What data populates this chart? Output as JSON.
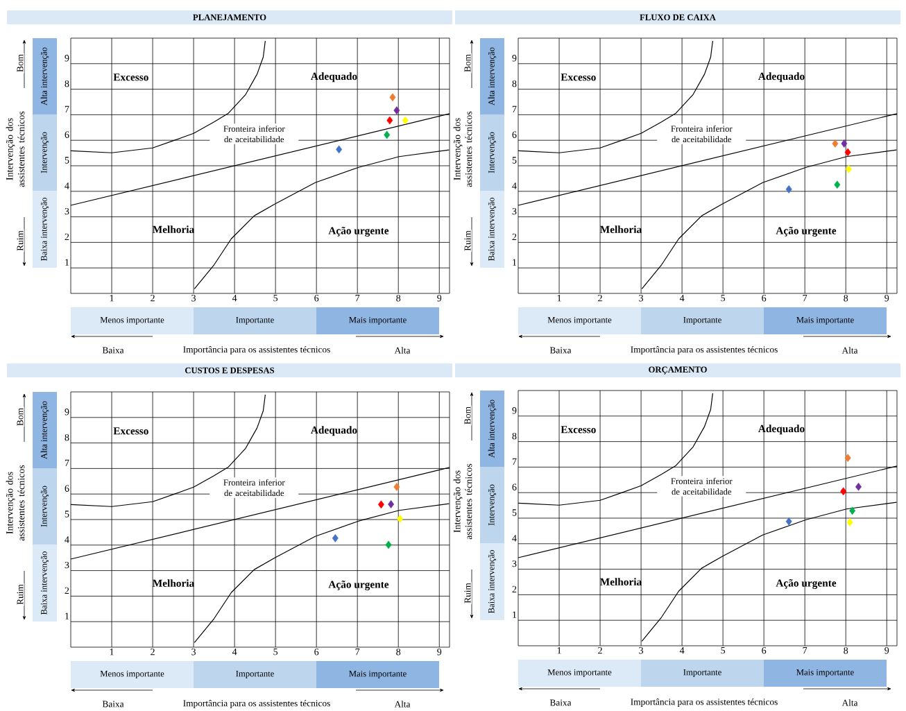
{
  "chart_data": [
    {
      "type": "scatter",
      "title": "PLANEJAMENTO",
      "xlabel": "Importância para os assistentes técnicos",
      "ylabel": "Intervenção dos assistentes técnicos",
      "xlim": [
        0,
        9.25
      ],
      "ylim": [
        0,
        10
      ],
      "xticks": [
        1,
        2,
        3,
        4,
        5,
        6,
        7,
        8,
        9
      ],
      "yticks": [
        1,
        2,
        3,
        4,
        5,
        6,
        7,
        8,
        9
      ],
      "grid": true,
      "marker": "diamond",
      "annotations": [
        "Bom",
        "Ruim",
        "Baixa",
        "Alta",
        "Menos importante",
        "Importante",
        "Mais importante",
        "Baixa intervenção",
        "Intervenção",
        "Alta intervenção",
        "Excesso",
        "Adequado",
        "Melhoria",
        "Ação urgente",
        "Fronteira inferior de aceitabilidade"
      ],
      "series": [
        {
          "type": "line",
          "marker": "none",
          "color": "#000000",
          "x": [
            0,
            1,
            2,
            2.5,
            3,
            3.5,
            3.85,
            4.27,
            4.55,
            4.7,
            4.75
          ],
          "values": [
            5.59,
            5.51,
            5.7,
            5.98,
            6.27,
            6.72,
            7.06,
            7.79,
            8.59,
            9.26,
            9.89
          ]
        },
        {
          "type": "line",
          "marker": "none",
          "color": "#000000",
          "x": [
            0,
            9.25
          ],
          "values": [
            3.45,
            7.04
          ]
        },
        {
          "type": "line",
          "marker": "none",
          "color": "#000000",
          "x": [
            3.02,
            3.5,
            3.92,
            4.48,
            4.98,
            5.97,
            7.03,
            8.02,
            9.24
          ],
          "values": [
            0.18,
            1.12,
            2.14,
            3.04,
            3.5,
            4.34,
            4.94,
            5.36,
            5.62
          ]
        },
        {
          "color": "#4472c4",
          "x": [
            6.55
          ],
          "values": [
            5.64
          ]
        },
        {
          "color": "#ed7d31",
          "x": [
            7.86
          ],
          "values": [
            7.68
          ]
        },
        {
          "color": "#7030a0",
          "x": [
            7.96
          ],
          "values": [
            7.17
          ]
        },
        {
          "color": "#ff0000",
          "x": [
            7.79
          ],
          "values": [
            6.78
          ]
        },
        {
          "color": "#ffff00",
          "x": [
            8.17
          ],
          "values": [
            6.78
          ]
        },
        {
          "color": "#00b050",
          "x": [
            7.72
          ],
          "values": [
            6.21
          ]
        }
      ]
    },
    {
      "type": "scatter",
      "title": "FLUXO DE CAIXA",
      "xlabel": "Importância para os assistentes técnicos",
      "ylabel": "Intervenção dos assistentes técnicos",
      "xlim": [
        0,
        9.25
      ],
      "ylim": [
        0,
        10
      ],
      "xticks": [
        1,
        2,
        3,
        4,
        5,
        6,
        7,
        8,
        9
      ],
      "yticks": [
        1,
        2,
        3,
        4,
        5,
        6,
        7,
        8,
        9
      ],
      "grid": true,
      "marker": "diamond",
      "annotations": [
        "Bom",
        "Ruim",
        "Baixa",
        "Alta",
        "Menos importante",
        "Importante",
        "Mais importante",
        "Baixa intervenção",
        "Intervenção",
        "Alta intervenção",
        "Excesso",
        "Adequado",
        "Melhoria",
        "Ação urgente",
        "Fronteira inferior de aceitabilidade"
      ],
      "series": [
        {
          "type": "line",
          "marker": "none",
          "color": "#000000",
          "x": [
            0,
            1,
            2,
            2.5,
            3,
            3.5,
            3.85,
            4.27,
            4.55,
            4.7,
            4.75
          ],
          "values": [
            5.59,
            5.51,
            5.7,
            5.98,
            6.27,
            6.72,
            7.06,
            7.79,
            8.59,
            9.26,
            9.89
          ]
        },
        {
          "type": "line",
          "marker": "none",
          "color": "#000000",
          "x": [
            0,
            9.25
          ],
          "values": [
            3.45,
            7.04
          ]
        },
        {
          "type": "line",
          "marker": "none",
          "color": "#000000",
          "x": [
            3.02,
            3.5,
            3.92,
            4.48,
            4.98,
            5.97,
            7.03,
            8.02,
            9.24
          ],
          "values": [
            0.18,
            1.12,
            2.14,
            3.04,
            3.5,
            4.34,
            4.94,
            5.36,
            5.62
          ]
        },
        {
          "color": "#4472c4",
          "x": [
            6.61
          ],
          "values": [
            4.08
          ]
        },
        {
          "color": "#ed7d31",
          "x": [
            7.74
          ],
          "values": [
            5.87
          ]
        },
        {
          "color": "#7030a0",
          "x": [
            7.96
          ],
          "values": [
            5.87
          ]
        },
        {
          "color": "#ff0000",
          "x": [
            8.05
          ],
          "values": [
            5.53
          ]
        },
        {
          "color": "#ffff00",
          "x": [
            8.07
          ],
          "values": [
            4.87
          ]
        },
        {
          "color": "#00b050",
          "x": [
            7.79
          ],
          "values": [
            4.26
          ]
        }
      ]
    },
    {
      "type": "scatter",
      "title": "CUSTOS E DESPESAS",
      "xlabel": "Importância para os assistentes técnicos",
      "ylabel": "Intervenção dos assistentes técnicos",
      "xlim": [
        0,
        9.25
      ],
      "ylim": [
        0,
        10
      ],
      "xticks": [
        1,
        2,
        3,
        4,
        5,
        6,
        7,
        8,
        9
      ],
      "yticks": [
        1,
        2,
        3,
        4,
        5,
        6,
        7,
        8,
        9
      ],
      "grid": true,
      "marker": "diamond",
      "annotations": [
        "Bom",
        "Ruim",
        "Baixa",
        "Alta",
        "Menos importante",
        "Importante",
        "Mais importante",
        "Baixa intervenção",
        "Intervenção",
        "Alta intervenção",
        "Excesso",
        "Adequado",
        "Melhoria",
        "Ação urgente",
        "Fronteira inferior de aceitabilidade"
      ],
      "series": [
        {
          "type": "line",
          "marker": "none",
          "color": "#000000",
          "x": [
            0,
            1,
            2,
            2.5,
            3,
            3.5,
            3.85,
            4.27,
            4.55,
            4.7,
            4.75
          ],
          "values": [
            5.59,
            5.51,
            5.7,
            5.98,
            6.27,
            6.72,
            7.06,
            7.79,
            8.59,
            9.26,
            9.89
          ]
        },
        {
          "type": "line",
          "marker": "none",
          "color": "#000000",
          "x": [
            0,
            9.25
          ],
          "values": [
            3.45,
            7.04
          ]
        },
        {
          "type": "line",
          "marker": "none",
          "color": "#000000",
          "x": [
            3.02,
            3.5,
            3.92,
            4.48,
            4.98,
            5.97,
            7.03,
            8.02,
            9.24
          ],
          "values": [
            0.18,
            1.12,
            2.14,
            3.04,
            3.5,
            4.34,
            4.94,
            5.36,
            5.62
          ]
        },
        {
          "color": "#4472c4",
          "x": [
            6.46
          ],
          "values": [
            4.27
          ]
        },
        {
          "color": "#ed7d31",
          "x": [
            7.96
          ],
          "values": [
            6.28
          ]
        },
        {
          "color": "#7030a0",
          "x": [
            7.82
          ],
          "values": [
            5.6
          ]
        },
        {
          "color": "#ff0000",
          "x": [
            7.58
          ],
          "values": [
            5.59
          ]
        },
        {
          "color": "#ffff00",
          "x": [
            8.04
          ],
          "values": [
            5.03
          ]
        },
        {
          "color": "#00b050",
          "x": [
            7.76
          ],
          "values": [
            4.01
          ]
        }
      ]
    },
    {
      "type": "scatter",
      "title": "ORÇAMENTO",
      "xlabel": "Importância para os assistentes técnicos",
      "ylabel": "Intervenção dos assistentes técnicos",
      "xlim": [
        0,
        9.25
      ],
      "ylim": [
        0,
        10
      ],
      "xticks": [
        1,
        2,
        3,
        4,
        5,
        6,
        7,
        8,
        9
      ],
      "yticks": [
        1,
        2,
        3,
        4,
        5,
        6,
        7,
        8,
        9
      ],
      "grid": true,
      "marker": "diamond",
      "annotations": [
        "Bom",
        "Ruim",
        "Baixa",
        "Alta",
        "Menos importante",
        "Importante",
        "Mais importante",
        "Baixa intervenção",
        "Intervenção",
        "Alta intervenção",
        "Excesso",
        "Adequado",
        "Melhoria",
        "Ação urgente",
        "Fronteira inferior de aceitabilidade"
      ],
      "series": [
        {
          "type": "line",
          "marker": "none",
          "color": "#000000",
          "x": [
            0,
            1,
            2,
            2.5,
            3,
            3.5,
            3.85,
            4.27,
            4.55,
            4.7,
            4.75
          ],
          "values": [
            5.59,
            5.51,
            5.7,
            5.98,
            6.27,
            6.72,
            7.06,
            7.79,
            8.59,
            9.26,
            9.89
          ]
        },
        {
          "type": "line",
          "marker": "none",
          "color": "#000000",
          "x": [
            0,
            9.25
          ],
          "values": [
            3.45,
            7.04
          ]
        },
        {
          "type": "line",
          "marker": "none",
          "color": "#000000",
          "x": [
            3.02,
            3.5,
            3.92,
            4.48,
            4.98,
            5.97,
            7.03,
            8.02,
            9.24
          ],
          "values": [
            0.18,
            1.12,
            2.14,
            3.04,
            3.5,
            4.34,
            4.94,
            5.36,
            5.62
          ]
        },
        {
          "color": "#4472c4",
          "x": [
            6.61
          ],
          "values": [
            4.87
          ]
        },
        {
          "color": "#ed7d31",
          "x": [
            8.05
          ],
          "values": [
            7.36
          ]
        },
        {
          "color": "#7030a0",
          "x": [
            8.31
          ],
          "values": [
            6.23
          ]
        },
        {
          "color": "#ff0000",
          "x": [
            7.94
          ],
          "values": [
            6.05
          ]
        },
        {
          "color": "#ffff00",
          "x": [
            8.1
          ],
          "values": [
            4.84
          ]
        },
        {
          "color": "#00b050",
          "x": [
            8.16
          ],
          "values": [
            5.29
          ]
        }
      ]
    }
  ]
}
